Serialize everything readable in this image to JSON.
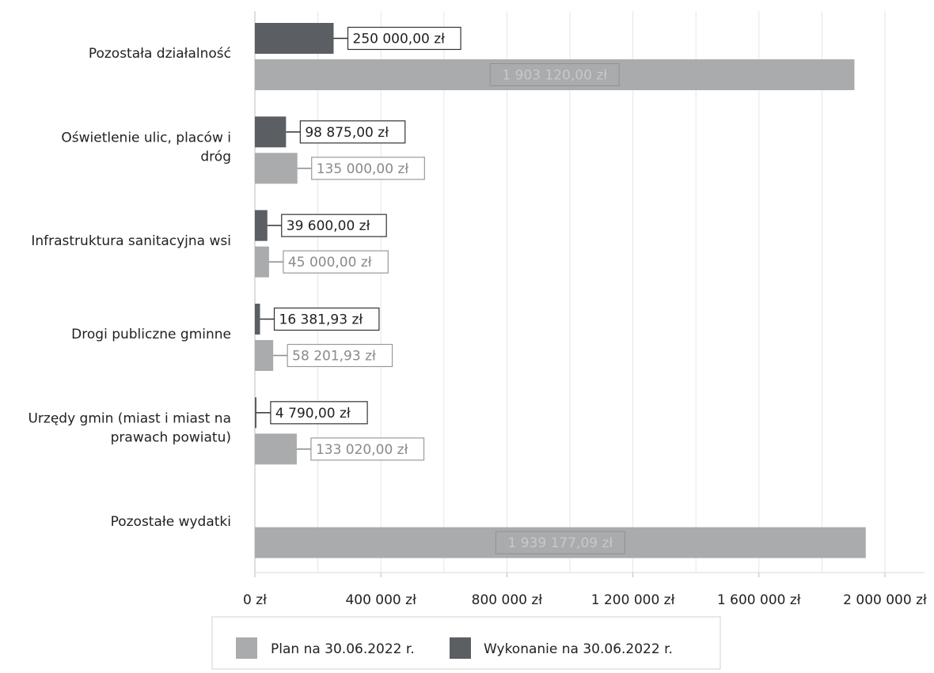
{
  "chart_data": {
    "type": "bar",
    "orientation": "horizontal",
    "categories": [
      [
        "Pozostała działalność"
      ],
      [
        "Oświetlenie ulic, placów i",
        "dróg"
      ],
      [
        "Infrastruktura sanitacyjna wsi"
      ],
      [
        "Drogi publiczne gminne"
      ],
      [
        "Urzędy gmin (miast i miast na",
        "prawach powiatu)"
      ],
      [
        "Pozostałe wydatki"
      ]
    ],
    "series": [
      {
        "name": "Wykonanie na 30.06.2022 r.",
        "color": "#5b5e63",
        "values": [
          250000.0,
          98875.0,
          39600.0,
          16381.93,
          4790.0,
          0
        ],
        "labels": [
          "250 000,00 zł",
          "98 875,00 zł",
          "39 600,00 zł",
          "16 381,93 zł",
          "4 790,00 zł",
          ""
        ]
      },
      {
        "name": "Plan na 30.06.2022 r.",
        "color": "#a9abad",
        "values": [
          1903120.0,
          135000.0,
          45000.0,
          58201.93,
          133020.0,
          1939177.09
        ],
        "labels": [
          "1 903 120,00 zł",
          "135 000,00 zł",
          "45 000,00 zł",
          "58 201,93 zł",
          "133 020,00 zł",
          "1 939 177,09 zł"
        ]
      }
    ],
    "xlim": [
      0,
      2000000
    ],
    "ticks": [
      0,
      400000,
      800000,
      1200000,
      1600000,
      2000000
    ],
    "tick_labels": [
      "0 zł",
      "400 000 zł",
      "800 000 zł",
      "1 200 000 zł",
      "1 600 000 zł",
      "2 000 000 zł"
    ],
    "grid": true,
    "legend": {
      "position": "bottom",
      "items": [
        {
          "label": "Plan na 30.06.2022 r.",
          "color": "#a9abad"
        },
        {
          "label": "Wykonanie na 30.06.2022 r.",
          "color": "#5b5e63"
        }
      ]
    }
  }
}
